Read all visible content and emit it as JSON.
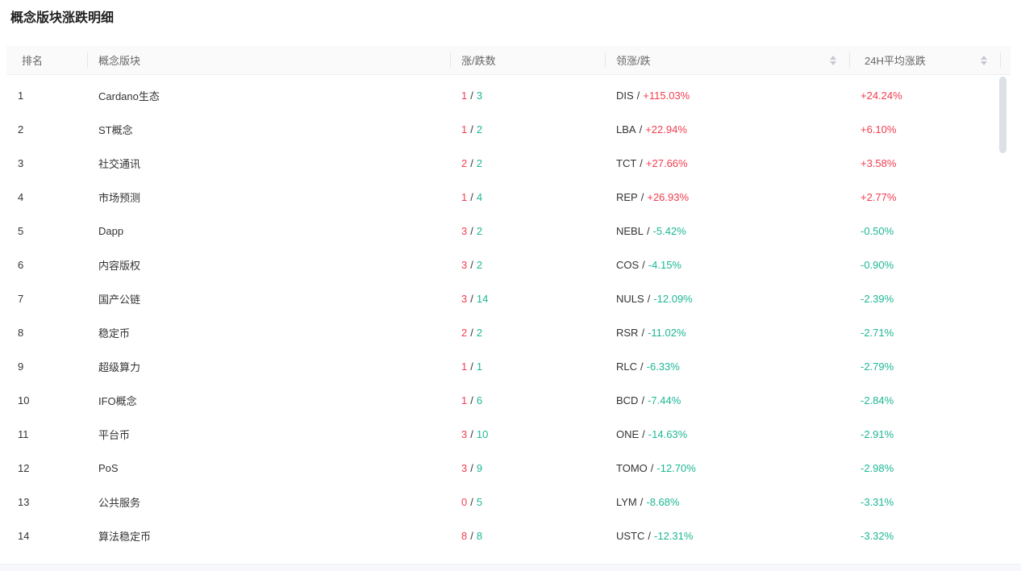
{
  "page": {
    "title": "概念版块涨跌明细"
  },
  "colors": {
    "rise_red": "#f23c4e",
    "fall_green": "#1db795",
    "header_bg": "#fafafa",
    "body_text": "#333333",
    "header_text": "#666666"
  },
  "table": {
    "separator": "/",
    "columns": {
      "rank": "排名",
      "sector": "概念版块",
      "updown": "涨/跌数",
      "leader": "领涨/跌",
      "avg24h": "24H平均涨跌"
    },
    "rows": [
      {
        "rank": "1",
        "sector": "Cardano生态",
        "up": "1",
        "down": "3",
        "leader_symbol": "DIS",
        "leader_change": "+115.03%",
        "leader_dir": "up",
        "avg": "+24.24%",
        "avg_dir": "up"
      },
      {
        "rank": "2",
        "sector": "ST概念",
        "up": "1",
        "down": "2",
        "leader_symbol": "LBA",
        "leader_change": "+22.94%",
        "leader_dir": "up",
        "avg": "+6.10%",
        "avg_dir": "up"
      },
      {
        "rank": "3",
        "sector": "社交通讯",
        "up": "2",
        "down": "2",
        "leader_symbol": "TCT",
        "leader_change": "+27.66%",
        "leader_dir": "up",
        "avg": "+3.58%",
        "avg_dir": "up"
      },
      {
        "rank": "4",
        "sector": "市场预测",
        "up": "1",
        "down": "4",
        "leader_symbol": "REP",
        "leader_change": "+26.93%",
        "leader_dir": "up",
        "avg": "+2.77%",
        "avg_dir": "up"
      },
      {
        "rank": "5",
        "sector": "Dapp",
        "up": "3",
        "down": "2",
        "leader_symbol": "NEBL",
        "leader_change": "-5.42%",
        "leader_dir": "down",
        "avg": "-0.50%",
        "avg_dir": "down"
      },
      {
        "rank": "6",
        "sector": "内容版权",
        "up": "3",
        "down": "2",
        "leader_symbol": "COS",
        "leader_change": "-4.15%",
        "leader_dir": "down",
        "avg": "-0.90%",
        "avg_dir": "down"
      },
      {
        "rank": "7",
        "sector": "国产公链",
        "up": "3",
        "down": "14",
        "leader_symbol": "NULS",
        "leader_change": "-12.09%",
        "leader_dir": "down",
        "avg": "-2.39%",
        "avg_dir": "down"
      },
      {
        "rank": "8",
        "sector": "稳定币",
        "up": "2",
        "down": "2",
        "leader_symbol": "RSR",
        "leader_change": "-11.02%",
        "leader_dir": "down",
        "avg": "-2.71%",
        "avg_dir": "down"
      },
      {
        "rank": "9",
        "sector": "超级算力",
        "up": "1",
        "down": "1",
        "leader_symbol": "RLC",
        "leader_change": "-6.33%",
        "leader_dir": "down",
        "avg": "-2.79%",
        "avg_dir": "down"
      },
      {
        "rank": "10",
        "sector": "IFO概念",
        "up": "1",
        "down": "6",
        "leader_symbol": "BCD",
        "leader_change": "-7.44%",
        "leader_dir": "down",
        "avg": "-2.84%",
        "avg_dir": "down"
      },
      {
        "rank": "11",
        "sector": "平台币",
        "up": "3",
        "down": "10",
        "leader_symbol": "ONE",
        "leader_change": "-14.63%",
        "leader_dir": "down",
        "avg": "-2.91%",
        "avg_dir": "down"
      },
      {
        "rank": "12",
        "sector": "PoS",
        "up": "3",
        "down": "9",
        "leader_symbol": "TOMO",
        "leader_change": "-12.70%",
        "leader_dir": "down",
        "avg": "-2.98%",
        "avg_dir": "down"
      },
      {
        "rank": "13",
        "sector": "公共服务",
        "up": "0",
        "down": "5",
        "leader_symbol": "LYM",
        "leader_change": "-8.68%",
        "leader_dir": "down",
        "avg": "-3.31%",
        "avg_dir": "down"
      },
      {
        "rank": "14",
        "sector": "算法稳定币",
        "up": "8",
        "down": "8",
        "leader_symbol": "USTC",
        "leader_change": "-12.31%",
        "leader_dir": "down",
        "avg": "-3.32%",
        "avg_dir": "down"
      }
    ]
  }
}
